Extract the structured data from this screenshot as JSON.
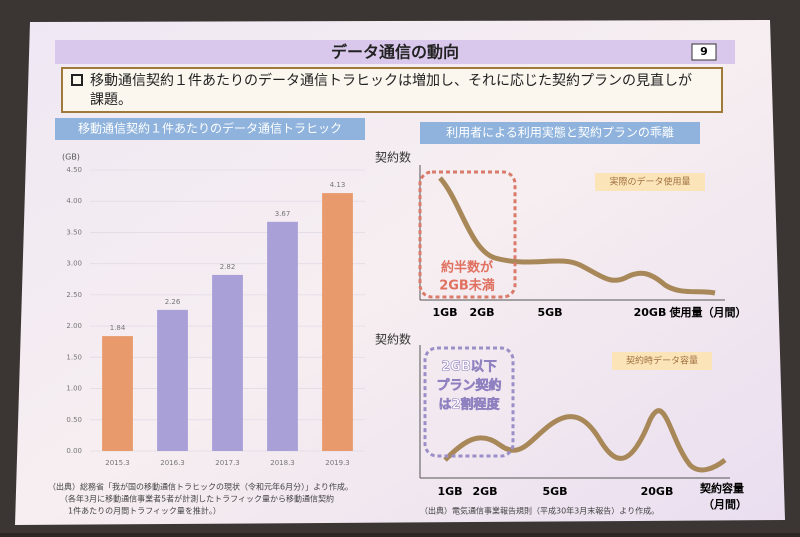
{
  "slide": {
    "title": "データ通信の動向",
    "page_number": "9",
    "bullet": [
      "移動通信契約１件あたりのデータ通信トラヒックは増加し、それに応じた契約プランの見直しが",
      "課題。"
    ],
    "left_heading": "移動通信契約１件あたりのデータ通信トラヒック",
    "right_heading": "利用者による利用実態と契約プランの乖離",
    "left_source": [
      "（出典）総務省「我が国の移動通信トラヒックの現状（令和元年6月分）」より作成。",
      "（各年3月に移動通信事業者5者が計測したトラフィック量から移動通信契約",
      "1件あたりの月間トラフィック量を推計。）"
    ],
    "upper": {
      "y_label": "契約数",
      "legend": "実際のデータ使用量",
      "note": [
        "約半数が",
        "2GB未満"
      ],
      "x_labels": [
        "1GB",
        "2GB",
        "5GB",
        "20GB"
      ],
      "x_title": "使用量（月間）"
    },
    "lower": {
      "y_label": "契約数",
      "legend": "契約時データ容量",
      "note": [
        "2GB以下",
        "プラン契約",
        "は2割程度"
      ],
      "x_labels": [
        "1GB",
        "2GB",
        "5GB",
        "20GB"
      ],
      "x_title": [
        "契約容量",
        "（月間）"
      ]
    },
    "right_source": "（出典）電気通信事業報告規則（平成30年3月末報告）より作成。"
  },
  "chart_data": {
    "type": "bar",
    "y_unit": "(GB)",
    "categories": [
      "2015.3",
      "2016.3",
      "2017.3",
      "2018.3",
      "2019.3"
    ],
    "values": [
      1.84,
      2.26,
      2.82,
      3.67,
      4.13
    ],
    "colors": [
      "#e99a6c",
      "#a9a0d8",
      "#a9a0d8",
      "#a9a0d8",
      "#e99a6c"
    ],
    "ylim": [
      0,
      4.5
    ],
    "yticks": [
      {
        "value": 0,
        "label": "0.00"
      },
      {
        "value": 0.5,
        "label": "0.50"
      },
      {
        "value": 1,
        "label": "1.00"
      },
      {
        "value": 1.5,
        "label": "1.50"
      },
      {
        "value": 2,
        "label": "2.00"
      },
      {
        "value": 2.5,
        "label": "2.50"
      },
      {
        "value": 3,
        "label": "3.00"
      },
      {
        "value": 3.5,
        "label": "3.50"
      },
      {
        "value": 4,
        "label": "4.00"
      },
      {
        "value": 4.5,
        "label": "4.50"
      }
    ],
    "grid": true
  }
}
